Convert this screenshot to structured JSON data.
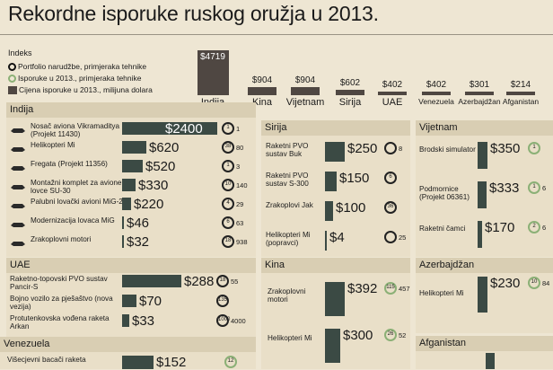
{
  "title": "Rekordne isporuke ruskog oružja u 2013.",
  "legend": {
    "heading": "Indeks",
    "items": [
      "Portfolio narudžbe, primjeraka tehnike",
      "Isporuke u 2013., primjeraka tehnike",
      "Cijena isporuke u 2013., milijuna dolara"
    ]
  },
  "top_chart": [
    {
      "country": "Indija",
      "value": "$4719"
    },
    {
      "country": "Kina",
      "value": "$904"
    },
    {
      "country": "Vijetnam",
      "value": "$904"
    },
    {
      "country": "Sirija",
      "value": "$602"
    },
    {
      "country": "UAE",
      "value": "$402"
    },
    {
      "country": "Venezuela",
      "value": "$402"
    },
    {
      "country": "Azerbajdžan",
      "value": "$301"
    },
    {
      "country": "Afganistan",
      "value": "$214"
    }
  ],
  "panels": {
    "india": {
      "title": "Indija",
      "rows": [
        {
          "label": "Nosač aviona Vikramaditya (Projekt 11430)",
          "value": "$2400",
          "ring": "1",
          "count": "1"
        },
        {
          "label": "Helikopteri Mi",
          "value": "$620",
          "ring": "38",
          "count": "80"
        },
        {
          "label": "Fregata (Projekt 11356)",
          "value": "$520",
          "ring": "1",
          "count": "3"
        },
        {
          "label": "Montažni komplet za avione lovce SU-30",
          "value": "$330",
          "ring": "10",
          "count": "140"
        },
        {
          "label": "Palubni lovački avioni MiG-29",
          "value": "$220",
          "ring": "4",
          "count": "29"
        },
        {
          "label": "Modernizacija lovaca MiG",
          "value": "$46",
          "ring": "6",
          "count": "63"
        },
        {
          "label": "Zrakoplovni motori",
          "value": "$32",
          "ring": "18",
          "count": "938"
        }
      ]
    },
    "syria": {
      "title": "Sirija",
      "rows": [
        {
          "label": "Raketni PVO sustav Buk",
          "value": "$250",
          "ring": "",
          "count": "8"
        },
        {
          "label": "Raketni PVO sustav S-300",
          "value": "$150",
          "ring": "6",
          "count": ""
        },
        {
          "label": "Zrakoplovi Jak",
          "value": "$100",
          "ring": "36",
          "count": ""
        },
        {
          "label": "Helikopteri Mi (popravci)",
          "value": "$4",
          "ring": "",
          "count": "25"
        }
      ]
    },
    "vietnam": {
      "title": "Vijetnam",
      "rows": [
        {
          "label": "Brodski simulator",
          "value": "$350",
          "ring": "1",
          "count": ""
        },
        {
          "label": "Podmornice (Projekt 06361)",
          "value": "$333",
          "ring": "1",
          "count": "6"
        },
        {
          "label": "Raketni čamci",
          "value": "$170",
          "ring": "2",
          "count": "6"
        }
      ]
    },
    "uae": {
      "title": "UAE",
      "rows": [
        {
          "label": "Raketno-topovski PVO sustav Pancir-S",
          "value": "$288",
          "ring": "18",
          "count": "55"
        },
        {
          "label": "Bojno vozilo za pješaštvo (nova vezija)",
          "value": "$70",
          "ring": "135",
          "count": ""
        },
        {
          "label": "Protutenkovska vođena raketa Arkan",
          "value": "$33",
          "ring": "1000",
          "count": "4000"
        }
      ]
    },
    "china": {
      "title": "Kina",
      "rows": [
        {
          "label": "Zrakoplovni motori",
          "value": "$392",
          "ring": "115",
          "count": "457"
        },
        {
          "label": "Helikopteri Mi",
          "value": "$300",
          "ring": "26",
          "count": "52"
        }
      ]
    },
    "azerbaijan": {
      "title": "Azerbajdžan",
      "rows": [
        {
          "label": "Helikopteri Mi",
          "value": "$230",
          "ring": "10",
          "count": "84"
        }
      ]
    },
    "venezuela": {
      "title": "Venezuela",
      "rows": [
        {
          "label": "Višecjevni bacači raketa",
          "value": "$152",
          "ring": "12",
          "count": ""
        }
      ]
    },
    "afghanistan": {
      "title": "Afganistan"
    }
  }
}
